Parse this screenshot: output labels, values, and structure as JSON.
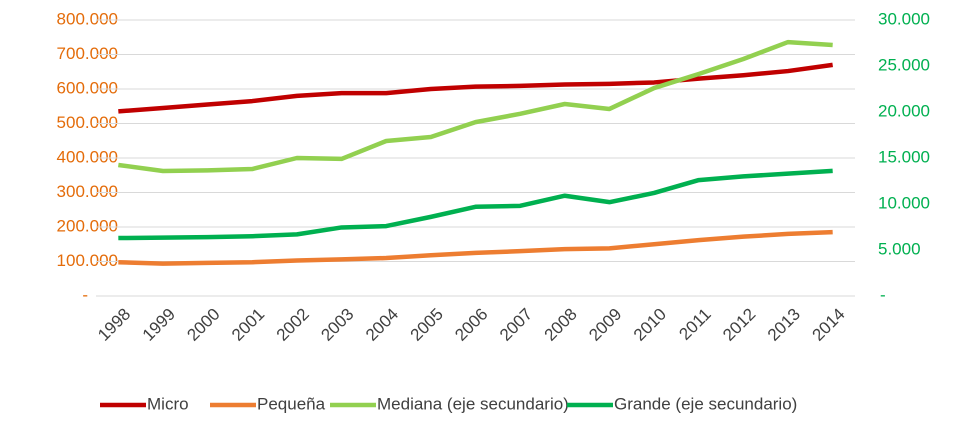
{
  "chart_data": {
    "type": "line",
    "categories": [
      "1998",
      "1999",
      "2000",
      "2001",
      "2002",
      "2003",
      "2004",
      "2005",
      "2006",
      "2007",
      "2008",
      "2009",
      "2010",
      "2011",
      "2012",
      "2013",
      "2014"
    ],
    "series": [
      {
        "name": "Micro",
        "color": "#c00000",
        "values": [
          535000,
          545000,
          555000,
          565000,
          580000,
          588000,
          588000,
          600000,
          607000,
          609000,
          613000,
          615000,
          619000,
          630000,
          640000,
          652000,
          670000
        ]
      },
      {
        "name": "Pequeña",
        "color": "#ed7d31",
        "values": [
          98000,
          94000,
          96000,
          98000,
          103000,
          106000,
          110000,
          118000,
          125000,
          130000,
          136000,
          138000,
          150000,
          162000,
          172000,
          180000,
          185000
        ]
      },
      {
        "name": "Mediana (eje secundario)",
        "color": "#92d050",
        "axis": "y2",
        "values": [
          14240,
          13590,
          13650,
          13800,
          15000,
          14900,
          16850,
          17280,
          18900,
          19800,
          20870,
          20330,
          22600,
          24130,
          25760,
          27600,
          27280
        ]
      },
      {
        "name": "Grande (eje secundario)",
        "color": "#00b050",
        "axis": "y2",
        "values": [
          6300,
          6350,
          6400,
          6500,
          6700,
          7450,
          7600,
          8600,
          9700,
          9800,
          10900,
          10200,
          11200,
          12600,
          13000,
          13300,
          13600
        ]
      }
    ],
    "ylim": [
      0,
      800000
    ],
    "yticks": [
      {
        "value": 0,
        "label": "-"
      },
      {
        "value": 100000,
        "label": "100.000"
      },
      {
        "value": 200000,
        "label": "200.000"
      },
      {
        "value": 300000,
        "label": "300.000"
      },
      {
        "value": 400000,
        "label": "400.000"
      },
      {
        "value": 500000,
        "label": "500.000"
      },
      {
        "value": 600000,
        "label": "600.000"
      },
      {
        "value": 700000,
        "label": "700.000"
      },
      {
        "value": 800000,
        "label": "800.000"
      }
    ],
    "y2lim": [
      0,
      30000
    ],
    "y2ticks": [
      {
        "value": 0,
        "label": "-"
      },
      {
        "value": 5000,
        "label": "5.000"
      },
      {
        "value": 10000,
        "label": "10.000"
      },
      {
        "value": 15000,
        "label": "15.000"
      },
      {
        "value": 20000,
        "label": "20.000"
      },
      {
        "value": 25000,
        "label": "25.000"
      },
      {
        "value": 30000,
        "label": "30.000"
      }
    ],
    "grid": true,
    "legend": "bottom"
  }
}
